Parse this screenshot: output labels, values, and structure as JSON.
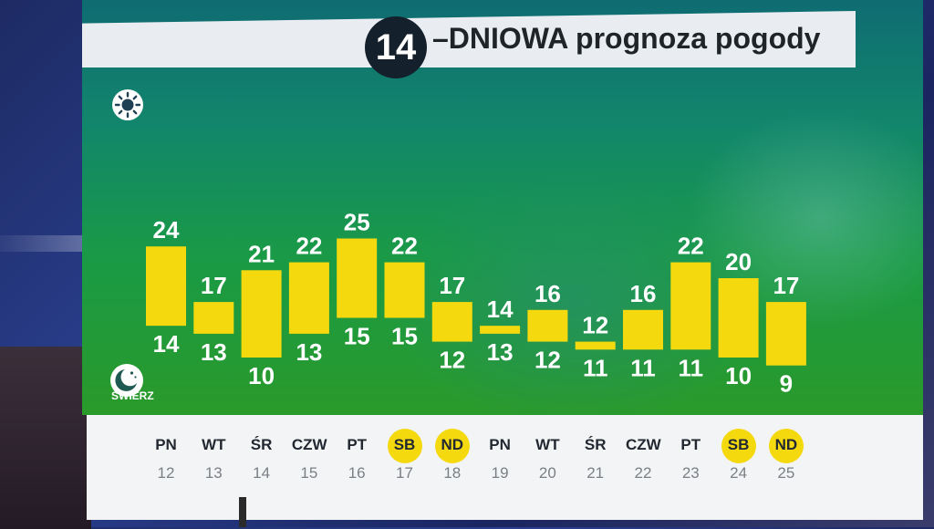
{
  "title": {
    "badge": "14",
    "text": "–DNIOWA prognoza pogody"
  },
  "station": "ŚWIERZ",
  "icons": {
    "day": "sun-icon",
    "night": "moon-icon"
  },
  "colors": {
    "bar": "#f5d90f",
    "weekend_highlight": "#f5d90f",
    "panel_top": "#0f6c72",
    "panel_bottom": "#2a9a2a",
    "title_bar": "#e9edf2",
    "badge": "#14202c"
  },
  "days": [
    {
      "name": "PN",
      "date": "12",
      "weekend": false
    },
    {
      "name": "WT",
      "date": "13",
      "weekend": false
    },
    {
      "name": "ŚR",
      "date": "14",
      "weekend": false
    },
    {
      "name": "CZW",
      "date": "15",
      "weekend": false
    },
    {
      "name": "PT",
      "date": "16",
      "weekend": false
    },
    {
      "name": "SB",
      "date": "17",
      "weekend": true
    },
    {
      "name": "ND",
      "date": "18",
      "weekend": true
    },
    {
      "name": "PN",
      "date": "19",
      "weekend": false
    },
    {
      "name": "WT",
      "date": "20",
      "weekend": false
    },
    {
      "name": "ŚR",
      "date": "21",
      "weekend": false
    },
    {
      "name": "CZW",
      "date": "22",
      "weekend": false
    },
    {
      "name": "PT",
      "date": "23",
      "weekend": false
    },
    {
      "name": "SB",
      "date": "24",
      "weekend": true
    },
    {
      "name": "ND",
      "date": "25",
      "weekend": true
    }
  ],
  "chart_data": {
    "type": "bar",
    "categories": [
      "12",
      "13",
      "14",
      "15",
      "16",
      "17",
      "18",
      "19",
      "20",
      "21",
      "22",
      "23",
      "24",
      "25"
    ],
    "series": [
      {
        "values": [
          24,
          17,
          21,
          22,
          25,
          22,
          17,
          14,
          16,
          12,
          16,
          22,
          20,
          17
        ]
      },
      {
        "values": [
          14,
          13,
          10,
          13,
          15,
          15,
          12,
          13,
          12,
          11,
          11,
          11,
          10,
          9
        ]
      }
    ],
    "title": "",
    "xlabel": "",
    "ylabel": "",
    "ylim": [
      9,
      25
    ],
    "grid": false,
    "legend": "none"
  }
}
